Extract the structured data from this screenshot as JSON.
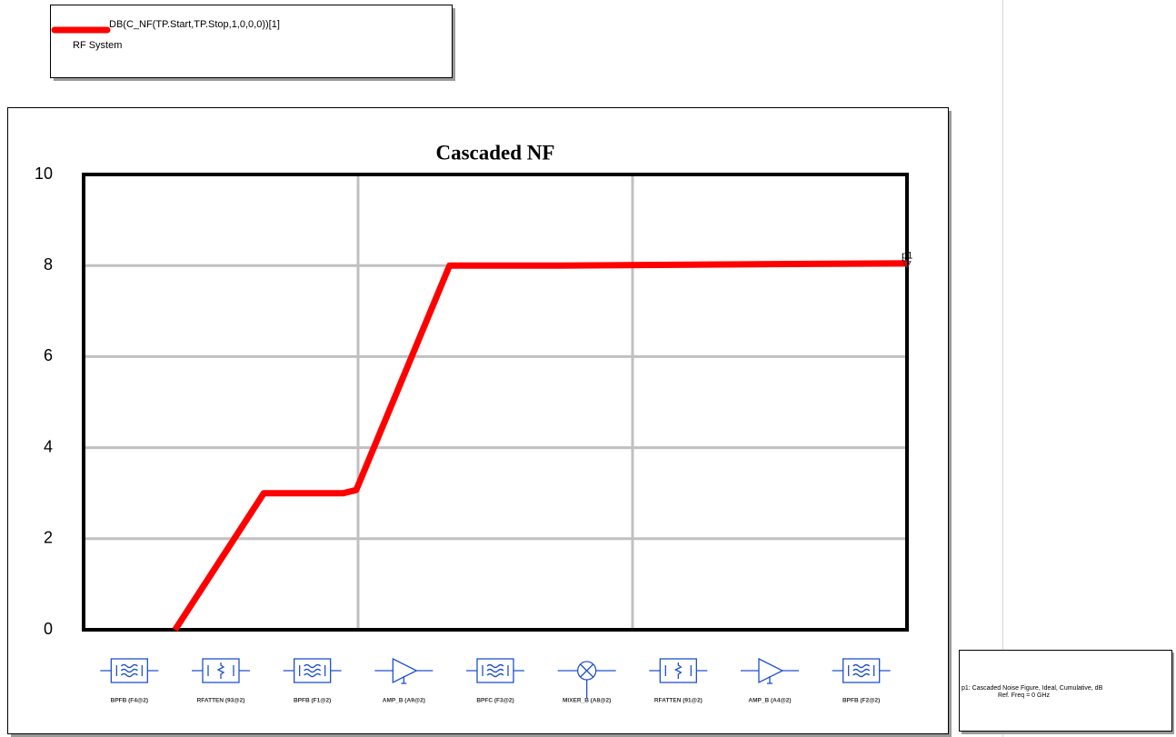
{
  "chart_data": {
    "type": "line",
    "title": "Cascaded NF",
    "x": [
      1,
      1.97,
      2.84,
      2.98,
      4.0,
      5.2,
      9
    ],
    "xlim": [
      0,
      9
    ],
    "xgrid": [
      3,
      6
    ],
    "ylim": [
      0,
      10
    ],
    "yticks": [
      0,
      2,
      4,
      6,
      8,
      10
    ],
    "grid": true,
    "series": [
      {
        "name": "DB(C_NF(TP.Start,TP.Stop,1,0,0,0))[1]",
        "color": "#ff0000",
        "values": [
          0,
          3,
          3,
          3.07,
          8,
          8,
          8.05
        ]
      }
    ],
    "legend_source": "RF System",
    "marker_label": "p1",
    "categories": [
      "BPFB (F4@2)",
      "RFATTEN (93@2)",
      "BPFB (F1@2)",
      "AMP_B (A9@2)",
      "BPFC (F3@2)",
      "MIXER_B (A8@2)",
      "RFATTEN (91@2)",
      "AMP_B (A4@2)",
      "BPFB (F2@2)"
    ],
    "marker_note": [
      "p1: Cascaded Noise Figure, Ideal, Cumulative, dB",
      "Ref. Freq = 0 GHz"
    ]
  }
}
